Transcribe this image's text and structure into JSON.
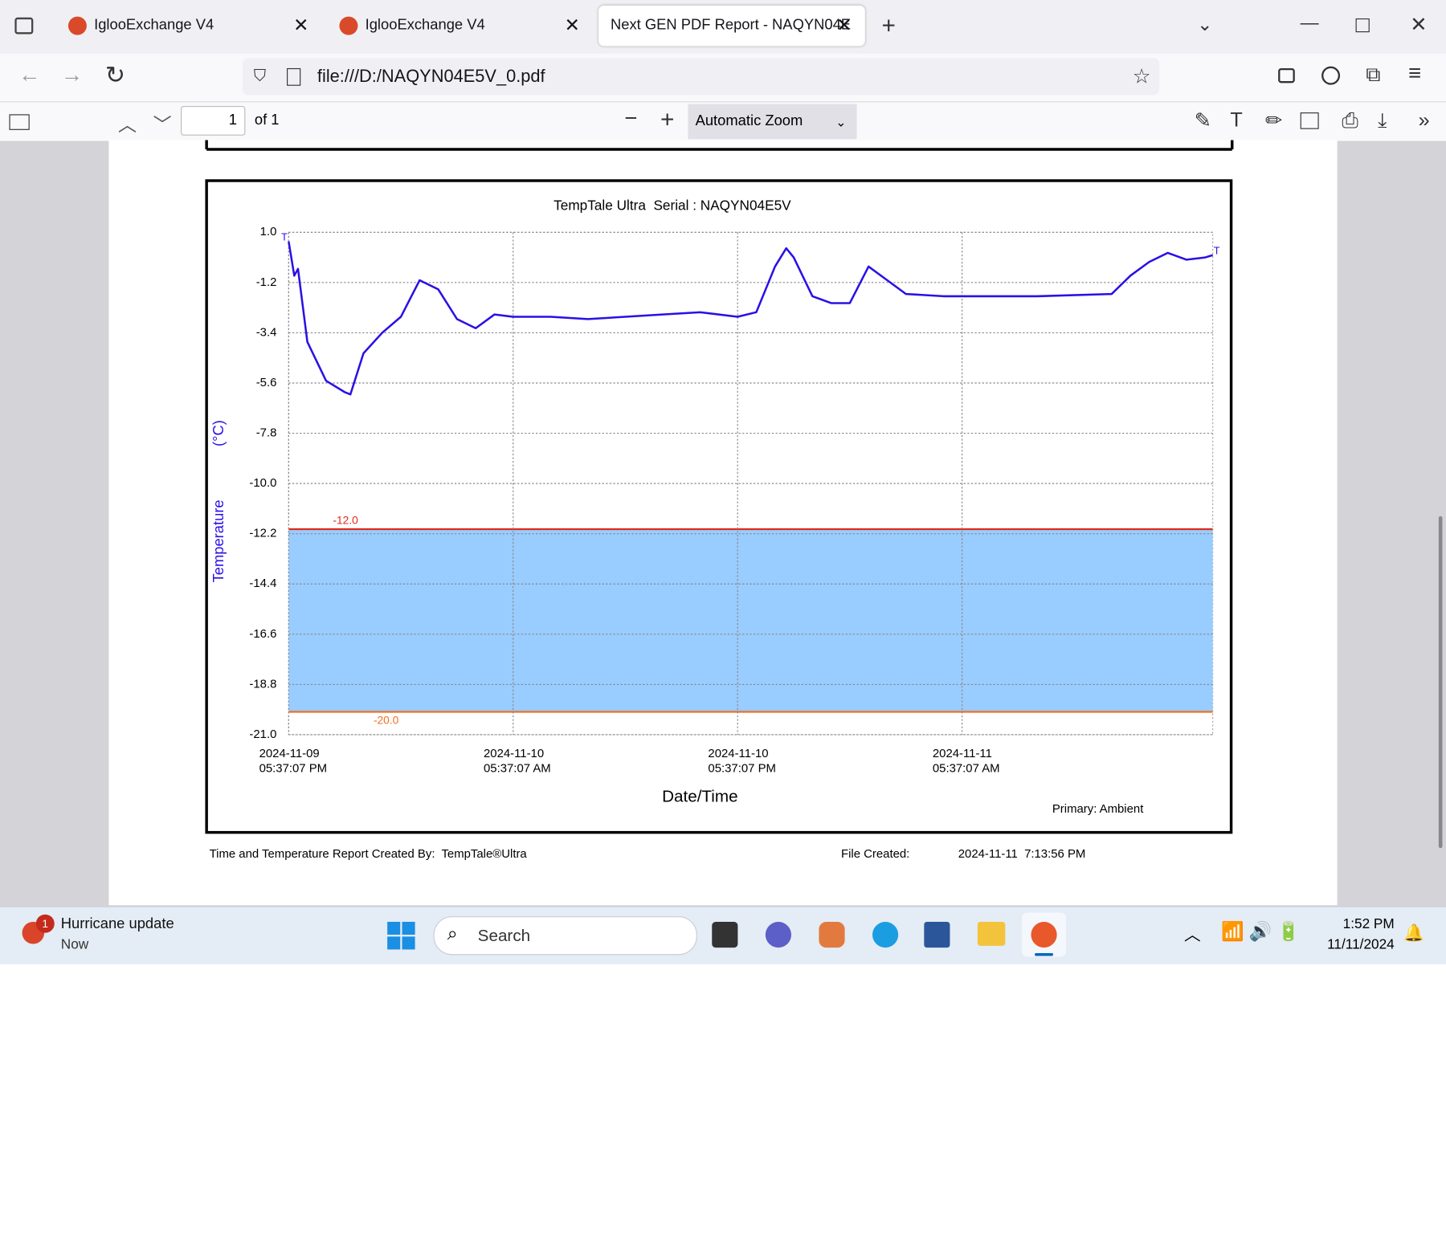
{
  "browser": {
    "tabs": [
      {
        "title": "IglooExchange V4"
      },
      {
        "title": "IglooExchange V4"
      },
      {
        "title": "Next GEN PDF Report - NAQYN04E"
      }
    ],
    "url": "file:///D:/NAQYN04E5V_0.pdf"
  },
  "pdf_toolbar": {
    "page": "1",
    "page_count": "of 1",
    "zoom": "Automatic Zoom"
  },
  "chart_data": {
    "type": "line",
    "title": "TempTale Ultra  Serial : NAQYN04E5V",
    "ylabel": "Temperature",
    "yunit": "(°C)",
    "xlabel": "Date/Time",
    "start_marker": "T",
    "end_marker": "T",
    "x": [
      "2024-11-09T17:37:07",
      "2024-11-09T17:55:07",
      "2024-11-09T18:07:07",
      "2024-11-09T18:37:07",
      "2024-11-09T19:37:07",
      "2024-11-09T20:37:07",
      "2024-11-09T20:55:07",
      "2024-11-09T21:37:07",
      "2024-11-09T22:37:07",
      "2024-11-09T23:37:07",
      "2024-11-10T00:37:07",
      "2024-11-10T01:37:07",
      "2024-11-10T02:37:07",
      "2024-11-10T03:37:07",
      "2024-11-10T04:37:07",
      "2024-11-10T05:37:07",
      "2024-11-10T07:37:07",
      "2024-11-10T09:37:07",
      "2024-11-10T11:37:07",
      "2024-11-10T13:37:07",
      "2024-11-10T15:37:07",
      "2024-11-10T17:37:07",
      "2024-11-10T18:37:07",
      "2024-11-10T19:37:07",
      "2024-11-10T20:13:07",
      "2024-11-10T20:37:07",
      "2024-11-10T21:37:07",
      "2024-11-10T22:37:07",
      "2024-11-10T23:37:07",
      "2024-11-11T00:37:07",
      "2024-11-11T01:37:07",
      "2024-11-11T02:37:07",
      "2024-11-11T04:37:07",
      "2024-11-11T09:37:07",
      "2024-11-11T13:37:07",
      "2024-11-11T14:37:07",
      "2024-11-11T15:37:07",
      "2024-11-11T16:37:07",
      "2024-11-11T17:37:07",
      "2024-11-11T18:37:07",
      "2024-11-11T19:01:07"
    ],
    "series": [
      {
        "name": "Primary: Ambient",
        "color": "#2a10e6",
        "values": [
          0.6,
          -0.9,
          -0.6,
          -3.8,
          -5.5,
          -6.0,
          -6.1,
          -4.3,
          -3.4,
          -2.7,
          -1.1,
          -1.5,
          -2.8,
          -3.2,
          -2.6,
          -2.7,
          -2.7,
          -2.8,
          -2.7,
          -2.6,
          -2.5,
          -2.7,
          -2.5,
          -0.5,
          0.3,
          -0.1,
          -1.8,
          -2.1,
          -2.1,
          -0.5,
          -1.1,
          -1.7,
          -1.8,
          -1.8,
          -1.7,
          -0.9,
          -0.3,
          0.1,
          -0.2,
          -0.1,
          0.0
        ]
      }
    ],
    "xlim": [
      "2024-11-09T17:37:07",
      "2024-11-11T19:01:07"
    ],
    "xticks": [
      {
        "value": "2024-11-09T17:37:07",
        "label": "2024-11-09 05:37:07 PM"
      },
      {
        "value": "2024-11-10T05:37:07",
        "label": "2024-11-10 05:37:07 AM"
      },
      {
        "value": "2024-11-10T17:37:07",
        "label": "2024-11-10 05:37:07 PM"
      },
      {
        "value": "2024-11-11T05:37:07",
        "label": "2024-11-11 05:37:07 AM"
      }
    ],
    "ylim": [
      -21,
      1
    ],
    "yticks": [
      {
        "value": 1,
        "label": "1.0"
      },
      -1.2,
      -3.4,
      -5.6,
      -7.8,
      {
        "value": -10,
        "label": "-10.0"
      },
      -12.2,
      -14.4,
      -16.6,
      -18.8,
      {
        "value": -21,
        "label": "-21.0"
      }
    ],
    "grid": true,
    "limits": [
      {
        "value": -12,
        "label": "-12.0",
        "color": "#e02a1a"
      },
      {
        "value": -20,
        "label": "-20.0",
        "color": "#f07020"
      }
    ],
    "band_color": "#99ccff"
  },
  "report_footer": {
    "created_by": "Time and Temperature Report Created By:  TempTale®Ultra",
    "file_created_label": "File Created:",
    "file_created": "2024-11-11  7:13:56 PM"
  },
  "taskbar": {
    "notification": {
      "badge": "1",
      "title": "Hurricane update",
      "time": "Now"
    },
    "search": "Search",
    "clock": {
      "time": "1:52 PM",
      "date": "11/11/2024"
    }
  }
}
